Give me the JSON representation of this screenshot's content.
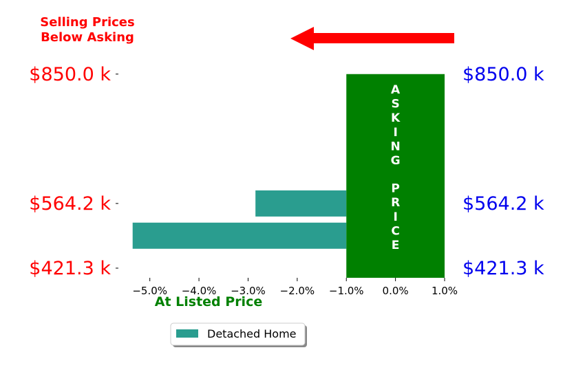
{
  "header": {
    "title_line1": "Selling Prices",
    "title_line2": "Below Asking"
  },
  "chart_data": {
    "type": "bar",
    "orientation": "horizontal",
    "xlabel": "At Listed Price",
    "xlim": [
      -5.5,
      1.0
    ],
    "x_ticks": [
      {
        "value": -5.0,
        "label": "−5.0%"
      },
      {
        "value": -4.0,
        "label": "−4.0%"
      },
      {
        "value": -3.0,
        "label": "−3.0%"
      },
      {
        "value": -2.0,
        "label": "−2.0%"
      },
      {
        "value": -1.0,
        "label": "−1.0%"
      },
      {
        "value": 0.0,
        "label": "0.0%"
      },
      {
        "value": 1.0,
        "label": "1.0%"
      }
    ],
    "ylim": [
      400,
      880
    ],
    "y_ticks": [
      {
        "value": 421.3,
        "label": "$421.3 k"
      },
      {
        "value": 564.2,
        "label": "$564.2 k"
      },
      {
        "value": 850.0,
        "label": "$850.0 k"
      }
    ],
    "series": [
      {
        "name": "Detached Home",
        "color": "#2a9d8f",
        "bars": [
          {
            "y_center": 564.2,
            "value": -2.85
          },
          {
            "y_center": 493.0,
            "value": -5.35
          }
        ]
      }
    ],
    "band": {
      "label": "ASKING PRICE",
      "color": "#008000",
      "x_range": [
        -1.0,
        1.0
      ],
      "y_range": [
        400,
        850
      ]
    },
    "arrow_color": "#ff0000",
    "legend_position": "below"
  }
}
